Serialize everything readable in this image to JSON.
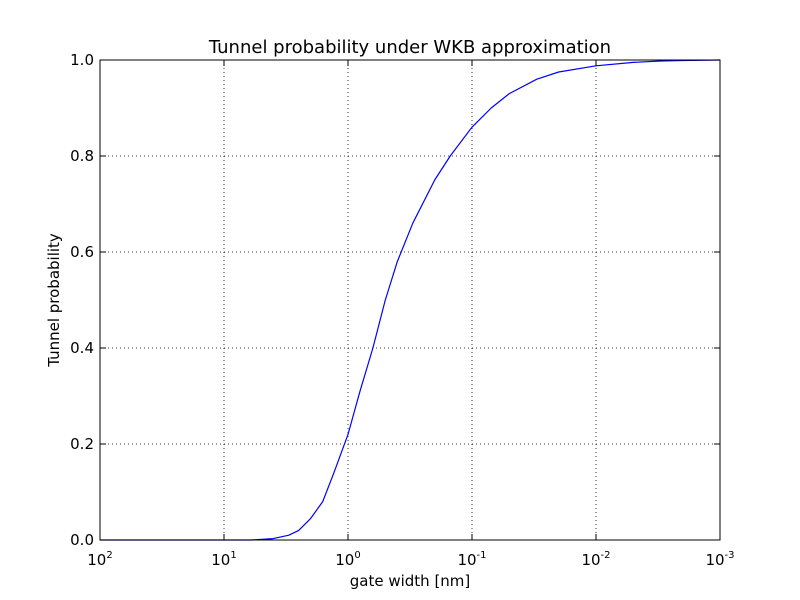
{
  "chart_data": {
    "type": "line",
    "title": "Tunnel probability under WKB approximation",
    "xlabel": "gate width [nm]",
    "ylabel": "Tunnel probability",
    "x_scale": "log",
    "x_reversed": true,
    "xlim": [
      100,
      0.001
    ],
    "ylim": [
      0.0,
      1.0
    ],
    "grid": true,
    "x_ticks": [
      {
        "value": 100,
        "base": "10",
        "exp": "2"
      },
      {
        "value": 10,
        "base": "10",
        "exp": "1"
      },
      {
        "value": 1,
        "base": "10",
        "exp": "0"
      },
      {
        "value": 0.1,
        "base": "10",
        "exp": "-1"
      },
      {
        "value": 0.01,
        "base": "10",
        "exp": "-2"
      },
      {
        "value": 0.001,
        "base": "10",
        "exp": "-3"
      }
    ],
    "y_ticks": [
      {
        "value": 0.0,
        "label": "0.0"
      },
      {
        "value": 0.2,
        "label": "0.2"
      },
      {
        "value": 0.4,
        "label": "0.4"
      },
      {
        "value": 0.6,
        "label": "0.6"
      },
      {
        "value": 0.8,
        "label": "0.8"
      },
      {
        "value": 1.0,
        "label": "1.0"
      }
    ],
    "series": [
      {
        "color": "#0000ff",
        "x": [
          100,
          20,
          6,
          4,
          3,
          2.5,
          2,
          1.6,
          1.3,
          1.0,
          0.8,
          0.63,
          0.5,
          0.4,
          0.3,
          0.2,
          0.15,
          0.1,
          0.07,
          0.05,
          0.03,
          0.02,
          0.01,
          0.005,
          0.003,
          0.002,
          0.001
        ],
        "y": [
          0.0,
          0.0,
          0.0,
          0.003,
          0.01,
          0.02,
          0.045,
          0.08,
          0.14,
          0.22,
          0.31,
          0.4,
          0.5,
          0.58,
          0.66,
          0.75,
          0.8,
          0.86,
          0.9,
          0.93,
          0.96,
          0.975,
          0.988,
          0.995,
          0.998,
          0.999,
          1.0
        ]
      }
    ]
  }
}
